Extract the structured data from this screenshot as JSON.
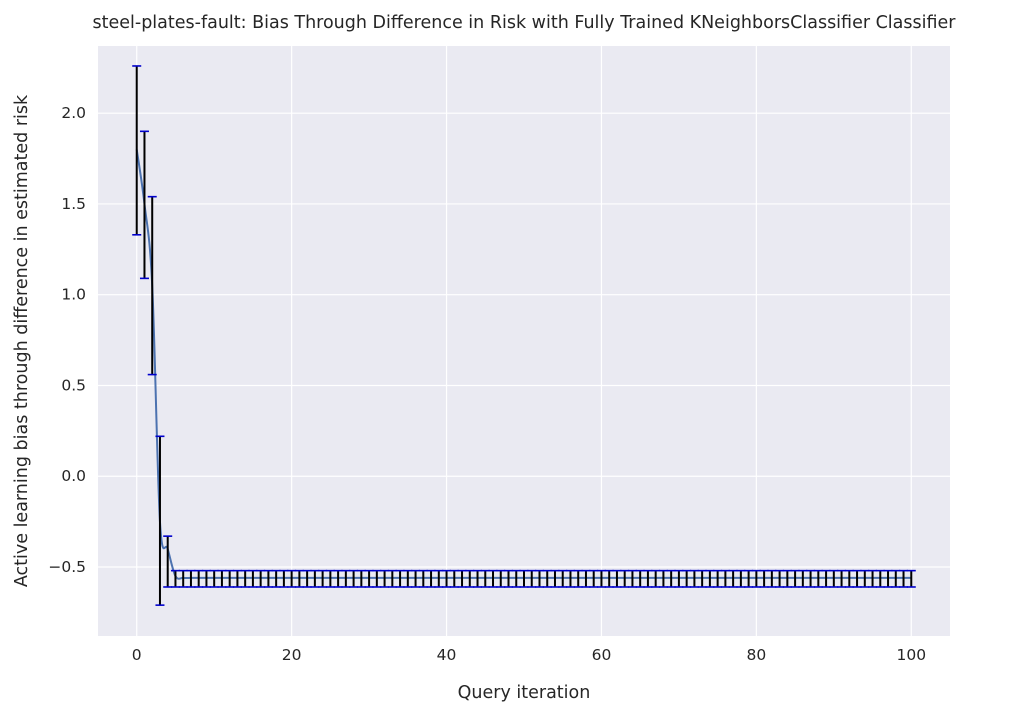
{
  "chart_data": {
    "type": "line",
    "title": "steel-plates-fault: Bias Through Difference in Risk with Fully Trained KNeighborsClassifier Classifier",
    "xlabel": "Query iteration",
    "ylabel": "Active learning bias through difference in estimated risk",
    "xlim": [
      -5,
      105
    ],
    "ylim": [
      -0.88,
      2.37
    ],
    "xticks": [
      0,
      20,
      40,
      60,
      80,
      100
    ],
    "yticks": [
      -0.5,
      0.0,
      0.5,
      1.0,
      1.5,
      2.0
    ],
    "xtick_labels": [
      "0",
      "20",
      "40",
      "60",
      "80",
      "100"
    ],
    "ytick_labels": [
      "−0.5",
      "0.0",
      "0.5",
      "1.0",
      "1.5",
      "2.0"
    ],
    "grid": true,
    "line_color": "#4c72b0",
    "errorbar_color": "#000000",
    "cap_color": "#0000cc",
    "background": "#eaeaf2",
    "series": [
      {
        "x": [
          0,
          1,
          2,
          3,
          4,
          5
        ],
        "y": [
          1.8,
          1.5,
          1.05,
          -0.25,
          -0.4,
          -0.55
        ],
        "yerr_low": [
          1.33,
          1.09,
          0.56,
          -0.71,
          -0.61,
          -0.61
        ],
        "yerr_high": [
          2.26,
          1.9,
          1.54,
          0.22,
          -0.33,
          -0.52
        ]
      }
    ],
    "plateau": {
      "x_start": 6,
      "x_end": 100,
      "y": -0.56,
      "low": -0.61,
      "high": -0.52
    }
  }
}
